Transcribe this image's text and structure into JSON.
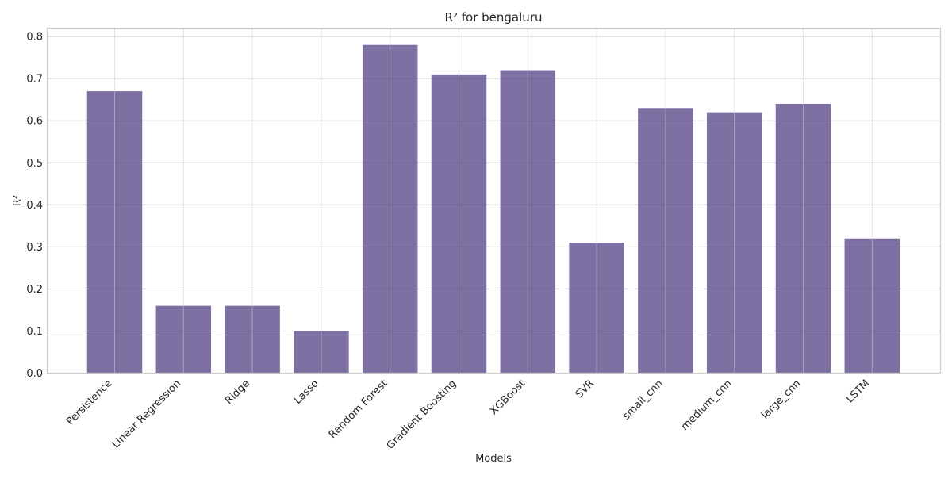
{
  "chart_data": {
    "type": "bar",
    "title": "R² for bengaluru",
    "xlabel": "Models",
    "ylabel": "R²",
    "categories": [
      "Persistence",
      "Linear Regression",
      "Ridge",
      "Lasso",
      "Random Forest",
      "Gradient Boosting",
      "XGBoost",
      "SVR",
      "small_cnn",
      "medium_cnn",
      "large_cnn",
      "LSTM"
    ],
    "values": [
      0.67,
      0.16,
      0.16,
      0.1,
      0.78,
      0.71,
      0.72,
      0.31,
      0.63,
      0.62,
      0.64,
      0.32
    ],
    "ylim": [
      0,
      0.82
    ],
    "yticks": [
      "0.0",
      "0.1",
      "0.2",
      "0.3",
      "0.4",
      "0.5",
      "0.6",
      "0.7",
      "0.8"
    ],
    "grid": true,
    "bar_color": "#5e4c8c"
  }
}
